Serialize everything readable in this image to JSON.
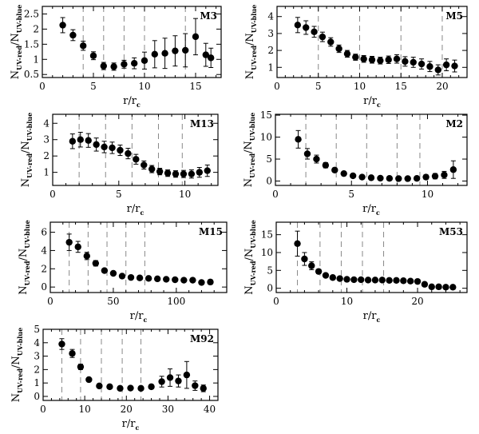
{
  "figure": {
    "ylabel": {
      "main": "N",
      "sub_num": "UV-red",
      "sep": "/N",
      "sub_den": "UV-blue"
    },
    "xlabel": {
      "main": "r/r",
      "sub": "c"
    }
  },
  "chart_data": [
    {
      "type": "scatter",
      "cluster": "M3",
      "xlim": [
        0,
        17.5
      ],
      "ylim": [
        0.4,
        2.75
      ],
      "xticks": [
        0,
        5,
        10,
        15
      ],
      "yticks": [
        0.5,
        1,
        1.5,
        2,
        2.5
      ],
      "ytick_labels": [
        "0.5",
        "1",
        "1.5",
        "2",
        "2.5"
      ],
      "vlines": [
        4,
        6,
        8,
        10,
        14
      ],
      "x": [
        2,
        3,
        4,
        5,
        6,
        7,
        8,
        9,
        10,
        11,
        12,
        13,
        14,
        15,
        16,
        16.5
      ],
      "y": [
        2.13,
        1.8,
        1.45,
        1.12,
        0.78,
        0.76,
        0.84,
        0.87,
        0.96,
        1.17,
        1.2,
        1.28,
        1.3,
        1.75,
        1.15,
        1.05
      ],
      "err": [
        0.25,
        0.18,
        0.15,
        0.13,
        0.12,
        0.12,
        0.13,
        0.18,
        0.28,
        0.45,
        0.5,
        0.5,
        0.55,
        0.6,
        0.38,
        0.32
      ]
    },
    {
      "type": "scatter",
      "cluster": "M5",
      "xlim": [
        0,
        23
      ],
      "ylim": [
        0.4,
        4.6
      ],
      "xticks": [
        0,
        5,
        10,
        15,
        20
      ],
      "yticks": [
        1,
        2,
        3,
        4
      ],
      "ytick_labels": [
        "1",
        "2",
        "3",
        "4"
      ],
      "vlines": [
        5,
        10,
        15,
        20
      ],
      "x": [
        2.5,
        3.5,
        4.5,
        5.5,
        6.5,
        7.5,
        8.5,
        9.5,
        10.5,
        11.5,
        12.5,
        13.5,
        14.5,
        15.5,
        16.5,
        17.5,
        18.5,
        19.5,
        20.5,
        21.5
      ],
      "y": [
        3.5,
        3.35,
        3.1,
        2.8,
        2.5,
        2.1,
        1.8,
        1.6,
        1.5,
        1.45,
        1.4,
        1.45,
        1.5,
        1.35,
        1.3,
        1.2,
        1.05,
        0.85,
        1.15,
        1.08
      ],
      "err": [
        0.45,
        0.4,
        0.32,
        0.28,
        0.25,
        0.22,
        0.2,
        0.18,
        0.2,
        0.2,
        0.2,
        0.22,
        0.25,
        0.28,
        0.3,
        0.3,
        0.3,
        0.3,
        0.35,
        0.35
      ]
    },
    {
      "type": "scatter",
      "cluster": "M13",
      "xlim": [
        0,
        12.5
      ],
      "ylim": [
        0.2,
        4.55
      ],
      "xticks": [
        0,
        5,
        10
      ],
      "yticks": [
        1,
        2,
        3,
        4
      ],
      "ytick_labels": [
        "1",
        "2",
        "3",
        "4"
      ],
      "vlines": [
        2,
        4,
        6,
        8,
        9.8
      ],
      "x": [
        1.5,
        2.1,
        2.7,
        3.3,
        3.9,
        4.5,
        5.1,
        5.7,
        6.3,
        6.9,
        7.5,
        8.1,
        8.7,
        9.3,
        9.9,
        10.5,
        11.1,
        11.7
      ],
      "y": [
        2.9,
        3.0,
        2.95,
        2.7,
        2.55,
        2.5,
        2.35,
        2.15,
        1.8,
        1.45,
        1.2,
        1.05,
        0.95,
        0.9,
        0.9,
        0.9,
        1.0,
        1.1
      ],
      "err": [
        0.45,
        0.45,
        0.42,
        0.4,
        0.35,
        0.35,
        0.32,
        0.32,
        0.3,
        0.25,
        0.22,
        0.2,
        0.2,
        0.2,
        0.22,
        0.25,
        0.3,
        0.35
      ]
    },
    {
      "type": "scatter",
      "cluster": "M2",
      "xlim": [
        0,
        12.6
      ],
      "ylim": [
        -1,
        15.2
      ],
      "xticks": [
        0,
        5,
        10
      ],
      "yticks": [
        0,
        5,
        10,
        15
      ],
      "ytick_labels": [
        "0",
        "5",
        "10",
        "15"
      ],
      "vlines": [
        2,
        4,
        6,
        8,
        9.5
      ],
      "x": [
        1.5,
        2.1,
        2.7,
        3.3,
        3.9,
        4.5,
        5.1,
        5.7,
        6.3,
        6.9,
        7.5,
        8.1,
        8.7,
        9.3,
        9.9,
        10.5,
        11.1,
        11.7
      ],
      "y": [
        9.5,
        6.2,
        5.0,
        3.6,
        2.5,
        1.7,
        1.2,
        0.9,
        0.75,
        0.65,
        0.6,
        0.55,
        0.55,
        0.6,
        0.9,
        1.1,
        1.4,
        2.6
      ],
      "err": [
        2.0,
        1.2,
        0.9,
        0.6,
        0.4,
        0.3,
        0.25,
        0.25,
        0.25,
        0.25,
        0.25,
        0.25,
        0.3,
        0.35,
        0.5,
        0.6,
        0.8,
        2.0
      ]
    },
    {
      "type": "scatter",
      "cluster": "M15",
      "xlim": [
        0,
        140
      ],
      "ylim": [
        -0.6,
        7.1
      ],
      "xticks": [
        0,
        50,
        100
      ],
      "yticks": [
        0,
        2,
        4,
        6
      ],
      "ytick_labels": [
        "0",
        "2",
        "4",
        "6"
      ],
      "vlines": [
        15,
        30,
        45,
        60,
        75
      ],
      "x": [
        15,
        22,
        29,
        36,
        43,
        50,
        57,
        64,
        71,
        78,
        85,
        92,
        99,
        106,
        113,
        120,
        127
      ],
      "y": [
        4.9,
        4.4,
        3.4,
        2.6,
        1.8,
        1.5,
        1.2,
        1.05,
        1.0,
        0.95,
        0.9,
        0.85,
        0.8,
        0.75,
        0.75,
        0.5,
        0.55
      ],
      "err": [
        0.9,
        0.6,
        0.4,
        0.3,
        0.15,
        0.15,
        0.12,
        0.1,
        0.1,
        0.1,
        0.1,
        0.1,
        0.1,
        0.12,
        0.15,
        0.2,
        0.25
      ]
    },
    {
      "type": "scatter",
      "cluster": "M53",
      "xlim": [
        0,
        27
      ],
      "ylim": [
        -1.2,
        18.5
      ],
      "xticks": [
        0,
        10,
        20
      ],
      "yticks": [
        0,
        5,
        10,
        15
      ],
      "ytick_labels": [
        "0",
        "5",
        "10",
        "15"
      ],
      "vlines": [
        3,
        6.2,
        9.2,
        12.2,
        15.2
      ],
      "x": [
        3,
        4,
        5,
        6,
        7,
        8,
        9,
        10,
        11,
        12,
        13,
        14,
        15,
        16,
        17,
        18,
        19,
        20,
        21,
        22,
        23,
        24,
        25
      ],
      "y": [
        12.5,
        8.2,
        6.3,
        4.7,
        3.6,
        3.0,
        2.7,
        2.5,
        2.4,
        2.4,
        2.3,
        2.3,
        2.3,
        2.2,
        2.2,
        2.1,
        2.0,
        1.9,
        1.1,
        0.4,
        0.4,
        0.3,
        0.3
      ],
      "err": [
        3.5,
        1.8,
        1.1,
        0.6,
        0.45,
        0.35,
        0.3,
        0.3,
        0.3,
        0.3,
        0.3,
        0.3,
        0.3,
        0.3,
        0.3,
        0.3,
        0.3,
        0.3,
        0.3,
        0.2,
        0.2,
        0.2,
        0.2
      ]
    },
    {
      "type": "scatter",
      "cluster": "M92",
      "xlim": [
        0,
        42
      ],
      "ylim": [
        -0.3,
        5
      ],
      "xticks": [
        0,
        10,
        20,
        30,
        40
      ],
      "yticks": [
        0,
        1,
        2,
        3,
        4,
        5
      ],
      "ytick_labels": [
        "0",
        "1",
        "2",
        "3",
        "4",
        "5"
      ],
      "vlines": [
        4.5,
        9,
        14,
        19,
        23.5
      ],
      "x": [
        4.5,
        7,
        9,
        11,
        13.5,
        16,
        18.5,
        21,
        23.5,
        26,
        28.5,
        30.5,
        32.5,
        34.5,
        36.5,
        38.5
      ],
      "y": [
        3.9,
        3.2,
        2.2,
        1.25,
        0.78,
        0.72,
        0.6,
        0.62,
        0.6,
        0.72,
        1.1,
        1.4,
        1.15,
        1.6,
        0.8,
        0.6
      ],
      "err": [
        0.4,
        0.3,
        0.2,
        0.12,
        0.1,
        0.1,
        0.1,
        0.1,
        0.1,
        0.15,
        0.4,
        0.65,
        0.45,
        1.0,
        0.35,
        0.25
      ]
    }
  ]
}
